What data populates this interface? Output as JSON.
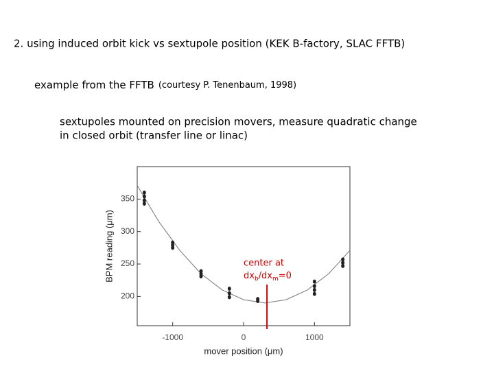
{
  "heading": "2. using induced orbit kick vs sextupole position (KEK B-factory, SLAC FFTB)",
  "example": {
    "text": "example from the FFTB",
    "credit": "(courtesy P. Tenenbaum, 1998)"
  },
  "description": [
    "sextupoles mounted on precision movers,  measure quadratic change",
    "in closed orbit (transfer line or linac)"
  ],
  "chart_data": {
    "type": "scatter",
    "xlabel": "mover position (μm)",
    "ylabel": "BPM reading (μm)",
    "xlim": [
      -1500,
      1500
    ],
    "ylim": [
      155,
      400
    ],
    "xticks": [
      -1000,
      0,
      1000
    ],
    "yticks": [
      200,
      250,
      300,
      350
    ],
    "series": [
      {
        "color": "#222222",
        "x": [
          -1400,
          -1400,
          -1400,
          -1400,
          -1000,
          -1000,
          -1000,
          -600,
          -600,
          -600,
          -200,
          -200,
          -200,
          200,
          200,
          1000,
          1000,
          1000,
          1000,
          1400,
          1400,
          1400
        ],
        "values": [
          360,
          354,
          348,
          343,
          283,
          279,
          275,
          239,
          235,
          231,
          212,
          205,
          199,
          196,
          193,
          223,
          216,
          210,
          204,
          257,
          252,
          247
        ]
      }
    ],
    "fit": {
      "color": "#777777",
      "x": [
        -1500,
        -1200,
        -900,
        -600,
        -300,
        0,
        300,
        600,
        900,
        1200,
        1500
      ],
      "values": [
        371,
        316,
        271,
        235,
        210,
        195,
        190,
        195,
        210,
        235,
        271
      ]
    },
    "marker": {
      "x": 330,
      "color": "#cc0000"
    },
    "annotation": {
      "line1": "center at",
      "parts": [
        "dx",
        "b",
        "/dx",
        "m",
        "=0"
      ],
      "color": "#cc0000"
    }
  }
}
